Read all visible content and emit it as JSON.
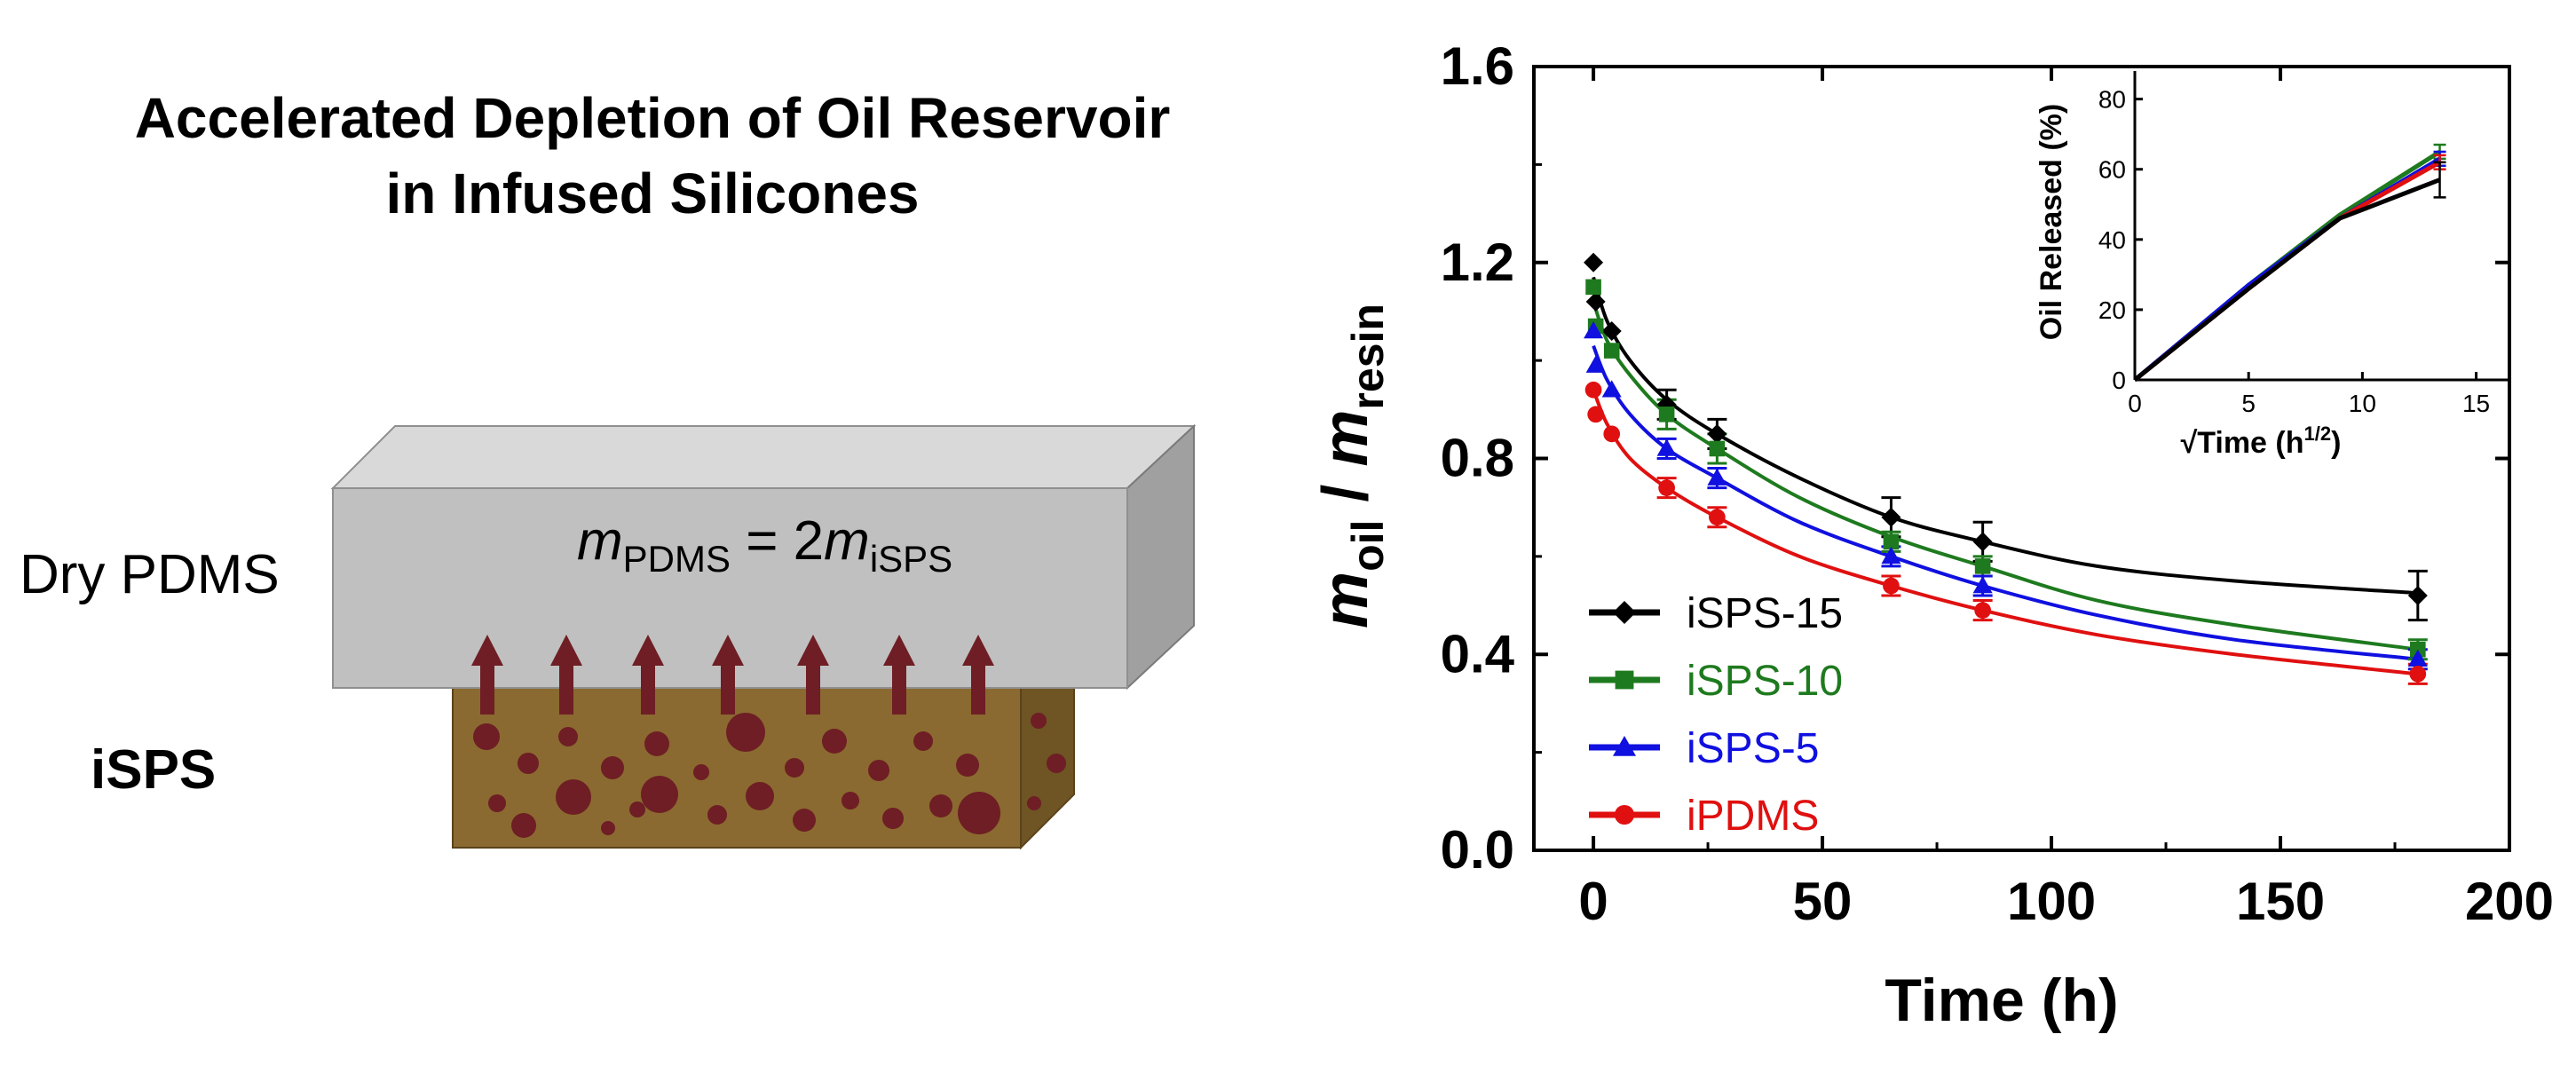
{
  "headline": {
    "line1": "Accelerated Depletion of Oil Reservoir",
    "line2": "in Infused Silicones"
  },
  "schematic": {
    "top_label": "Dry PDMS",
    "bottom_label": "iSPS",
    "equation": {
      "m1": "m",
      "sub1": "PDMS",
      "equals": " = 2",
      "m2": "m",
      "sub2": "iSPS"
    },
    "colors": {
      "block_face": "#c0c0c0",
      "block_top": "#d9d9d9",
      "block_side": "#a0a0a0",
      "reservoir": "#8a6a30",
      "droplet": "#6e1e24",
      "arrow": "#6e1e24"
    }
  },
  "chart_data": [
    {
      "type": "line",
      "ylabel": {
        "m1": "m",
        "sub1": "oil",
        "slash": " / ",
        "m2": "m",
        "sub2": "resin"
      },
      "xlabel": "Time (h)",
      "xlim": [
        -13,
        200
      ],
      "ylim": [
        0,
        1.6
      ],
      "xticks": [
        "0",
        "50",
        "100",
        "150",
        "200"
      ],
      "yticks": [
        "0.0",
        "0.4",
        "0.8",
        "1.2",
        "1.6"
      ],
      "legend_position": "bottom-left",
      "series": [
        {
          "name": "iSPS-15",
          "color": "#000000",
          "marker": "diamond",
          "points": [
            [
              0,
              1.2
            ],
            [
              0.5,
              1.12
            ],
            [
              4,
              1.06
            ],
            [
              16,
              0.91
            ],
            [
              27,
              0.85
            ],
            [
              65,
              0.68
            ],
            [
              85,
              0.63
            ],
            [
              180,
              0.52
            ]
          ],
          "errors": [
            0,
            0,
            0,
            0.03,
            0.03,
            0.04,
            0.04,
            0.05
          ],
          "fit": [
            [
              0,
              1.17
            ],
            [
              3,
              1.08
            ],
            [
              8,
              1.0
            ],
            [
              16,
              0.92
            ],
            [
              27,
              0.85
            ],
            [
              45,
              0.76
            ],
            [
              65,
              0.68
            ],
            [
              85,
              0.63
            ],
            [
              110,
              0.58
            ],
            [
              140,
              0.55
            ],
            [
              180,
              0.525
            ]
          ]
        },
        {
          "name": "iSPS-10",
          "color": "#1e7a1e",
          "marker": "square",
          "points": [
            [
              0,
              1.15
            ],
            [
              0.5,
              1.07
            ],
            [
              4,
              1.02
            ],
            [
              16,
              0.89
            ],
            [
              27,
              0.82
            ],
            [
              65,
              0.63
            ],
            [
              85,
              0.58
            ],
            [
              180,
              0.41
            ]
          ],
          "errors": [
            0,
            0,
            0,
            0.03,
            0.03,
            0.02,
            0.02,
            0.02
          ],
          "fit": [
            [
              0,
              1.12
            ],
            [
              3,
              1.04
            ],
            [
              8,
              0.97
            ],
            [
              16,
              0.89
            ],
            [
              27,
              0.82
            ],
            [
              45,
              0.72
            ],
            [
              65,
              0.64
            ],
            [
              85,
              0.58
            ],
            [
              110,
              0.51
            ],
            [
              140,
              0.46
            ],
            [
              180,
              0.41
            ]
          ]
        },
        {
          "name": "iSPS-5",
          "color": "#1010e0",
          "marker": "triangle",
          "points": [
            [
              0,
              1.06
            ],
            [
              0.5,
              0.99
            ],
            [
              4,
              0.94
            ],
            [
              16,
              0.82
            ],
            [
              27,
              0.76
            ],
            [
              65,
              0.6
            ],
            [
              85,
              0.54
            ],
            [
              180,
              0.39
            ]
          ],
          "errors": [
            0,
            0,
            0,
            0.02,
            0.02,
            0.02,
            0.02,
            0.02
          ],
          "fit": [
            [
              0,
              1.03
            ],
            [
              3,
              0.96
            ],
            [
              8,
              0.89
            ],
            [
              16,
              0.82
            ],
            [
              27,
              0.76
            ],
            [
              45,
              0.67
            ],
            [
              65,
              0.6
            ],
            [
              85,
              0.54
            ],
            [
              110,
              0.48
            ],
            [
              140,
              0.43
            ],
            [
              180,
              0.39
            ]
          ]
        },
        {
          "name": "iPDMS",
          "color": "#e01010",
          "marker": "circle",
          "points": [
            [
              0,
              0.94
            ],
            [
              0.5,
              0.89
            ],
            [
              4,
              0.85
            ],
            [
              16,
              0.74
            ],
            [
              27,
              0.68
            ],
            [
              65,
              0.54
            ],
            [
              85,
              0.49
            ],
            [
              180,
              0.36
            ]
          ],
          "errors": [
            0,
            0,
            0,
            0.02,
            0.02,
            0.02,
            0.02,
            0.02
          ],
          "fit": [
            [
              0,
              0.94
            ],
            [
              3,
              0.87
            ],
            [
              8,
              0.8
            ],
            [
              16,
              0.74
            ],
            [
              27,
              0.68
            ],
            [
              45,
              0.6
            ],
            [
              65,
              0.54
            ],
            [
              85,
              0.49
            ],
            [
              110,
              0.44
            ],
            [
              140,
              0.4
            ],
            [
              180,
              0.36
            ]
          ]
        }
      ]
    },
    {
      "type": "line",
      "title": "",
      "xlabel": {
        "text": "√Time (h",
        "sup": "1/2",
        "close": ")"
      },
      "ylabel": "Oil Released (%)",
      "xlim": [
        0,
        16.5
      ],
      "ylim": [
        0,
        88
      ],
      "xticks": [
        "0",
        "5",
        "10",
        "15"
      ],
      "yticks": [
        "0",
        "20",
        "40",
        "60",
        "80"
      ],
      "series": [
        {
          "color": "#1e7a1e",
          "points": [
            [
              0,
              0
            ],
            [
              5,
              27
            ],
            [
              9,
              47
            ],
            [
              13.4,
              65
            ]
          ],
          "end_error": 2
        },
        {
          "color": "#1010e0",
          "points": [
            [
              0,
              0
            ],
            [
              5,
              27
            ],
            [
              9,
              46
            ],
            [
              13.4,
              63
            ]
          ],
          "end_error": 2
        },
        {
          "color": "#e01010",
          "points": [
            [
              0,
              0
            ],
            [
              5,
              26
            ],
            [
              9,
              46
            ],
            [
              13.4,
              62
            ]
          ],
          "end_error": 2
        },
        {
          "color": "#000000",
          "points": [
            [
              0,
              0
            ],
            [
              5,
              26
            ],
            [
              9,
              46
            ],
            [
              13.4,
              57
            ]
          ],
          "end_error": 5
        }
      ]
    }
  ]
}
